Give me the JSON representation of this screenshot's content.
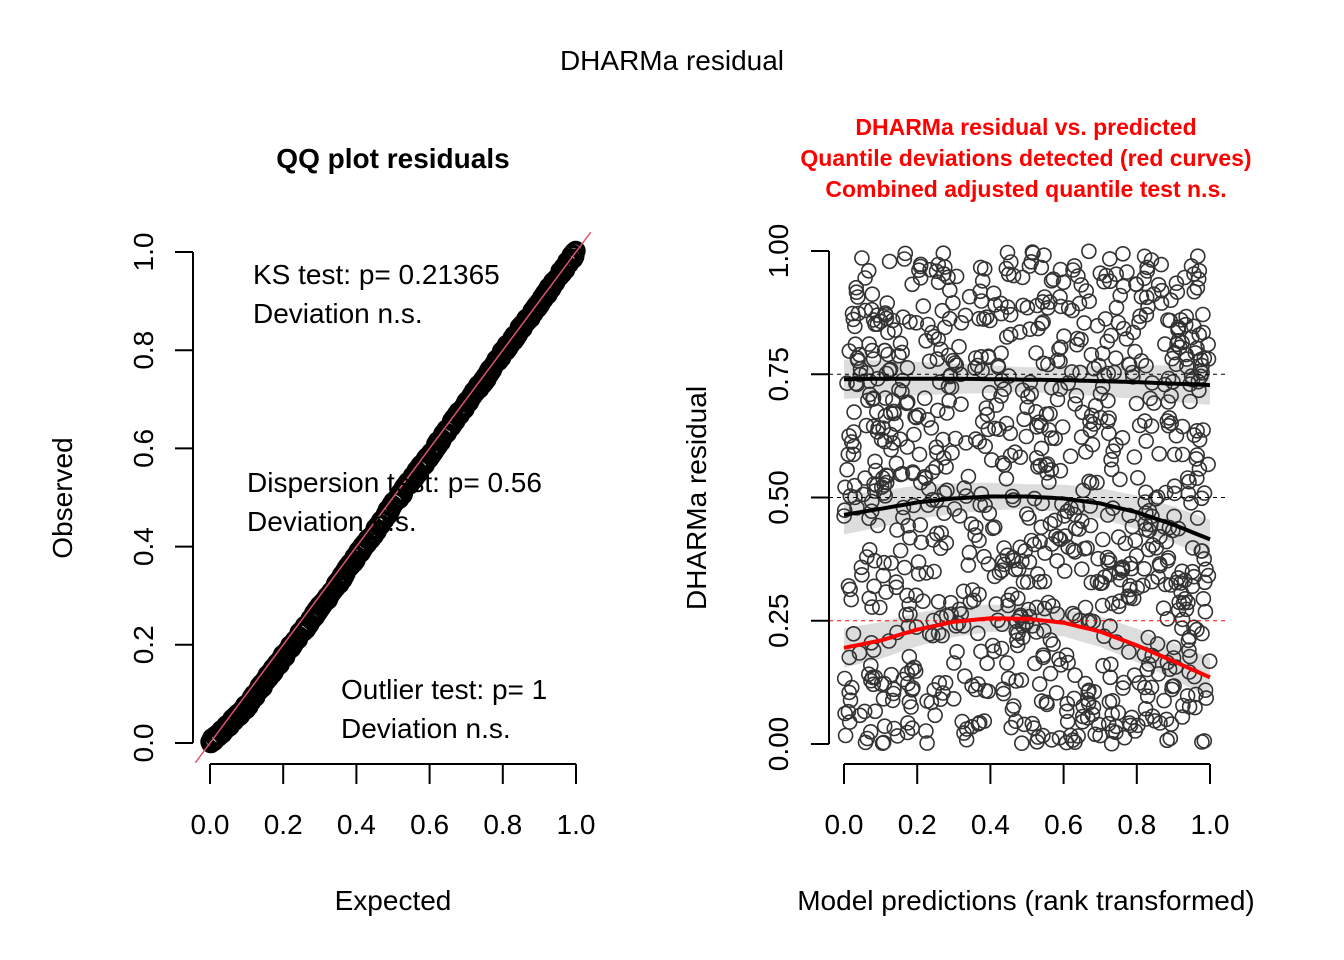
{
  "figure": {
    "title": "DHARMa residual"
  },
  "chart_data": [
    {
      "type": "scatter",
      "name": "qq-plot",
      "title": "QQ plot residuals",
      "xlabel": "Expected",
      "ylabel": "Observed",
      "xlim": [
        0,
        1
      ],
      "ylim": [
        0,
        1
      ],
      "xticks": [
        "0.0",
        "0.2",
        "0.4",
        "0.6",
        "0.8",
        "1.0"
      ],
      "yticks": [
        "0.0",
        "0.2",
        "0.4",
        "0.6",
        "0.8",
        "1.0"
      ],
      "grid": false,
      "reference_line": {
        "slope": 1,
        "intercept": 0,
        "color": "#DF536B"
      },
      "points_description": "dense QQ points following the diagonal, slightly below it in the lower half",
      "qq_profile": {
        "expected": [
          0.0,
          0.05,
          0.1,
          0.15,
          0.2,
          0.25,
          0.3,
          0.35,
          0.4,
          0.45,
          0.5,
          0.55,
          0.6,
          0.65,
          0.7,
          0.75,
          0.8,
          0.85,
          0.9,
          0.95,
          1.0
        ],
        "observed": [
          0.0,
          0.035,
          0.075,
          0.125,
          0.175,
          0.225,
          0.275,
          0.325,
          0.38,
          0.43,
          0.485,
          0.535,
          0.585,
          0.64,
          0.69,
          0.74,
          0.795,
          0.845,
          0.895,
          0.948,
          1.0
        ]
      },
      "annotations": [
        {
          "line1": "KS test: p= 0.21365",
          "line2": "Deviation  n.s."
        },
        {
          "line1": "Dispersion test: p= 0.56",
          "line2": "Deviation  n.s."
        },
        {
          "line1": "Outlier test: p= 1",
          "line2": "Deviation  n.s."
        }
      ]
    },
    {
      "type": "scatter",
      "name": "residual-vs-predicted",
      "title_lines": [
        "DHARMa residual vs. predicted",
        "Quantile deviations detected (red curves)",
        "Combined adjusted quantile test n.s."
      ],
      "title_color": "#FF0000",
      "xlabel": "Model predictions (rank transformed)",
      "ylabel": "DHARMa residual",
      "xlim": [
        0,
        1
      ],
      "ylim": [
        0,
        1
      ],
      "xticks": [
        "0.0",
        "0.2",
        "0.4",
        "0.6",
        "0.8",
        "1.0"
      ],
      "yticks": [
        "0.00",
        "0.25",
        "0.50",
        "0.75",
        "1.00"
      ],
      "grid": false,
      "reference_lines": [
        {
          "y": 0.25,
          "color": "#FF0000",
          "style": "dashed"
        },
        {
          "y": 0.5,
          "color": "#000000",
          "style": "dashed"
        },
        {
          "y": 0.75,
          "color": "#000000",
          "style": "dashed"
        }
      ],
      "point_count_approx": 1000,
      "quantile_curves": [
        {
          "quantile": 0.25,
          "color": "#FF0000",
          "x": [
            0.0,
            0.1,
            0.2,
            0.3,
            0.4,
            0.5,
            0.6,
            0.7,
            0.8,
            0.9,
            1.0
          ],
          "y": [
            0.195,
            0.21,
            0.232,
            0.248,
            0.255,
            0.254,
            0.246,
            0.228,
            0.2,
            0.168,
            0.135
          ]
        },
        {
          "quantile": 0.5,
          "color": "#000000",
          "x": [
            0.0,
            0.1,
            0.2,
            0.3,
            0.4,
            0.5,
            0.6,
            0.7,
            0.8,
            0.9,
            1.0
          ],
          "y": [
            0.465,
            0.477,
            0.49,
            0.498,
            0.502,
            0.502,
            0.498,
            0.488,
            0.47,
            0.445,
            0.415
          ]
        },
        {
          "quantile": 0.75,
          "color": "#000000",
          "x": [
            0.0,
            0.1,
            0.2,
            0.3,
            0.4,
            0.5,
            0.6,
            0.7,
            0.8,
            0.9,
            1.0
          ],
          "y": [
            0.74,
            0.741,
            0.741,
            0.741,
            0.74,
            0.739,
            0.738,
            0.736,
            0.734,
            0.731,
            0.728
          ]
        }
      ],
      "band_halfwidth": 0.025
    }
  ]
}
